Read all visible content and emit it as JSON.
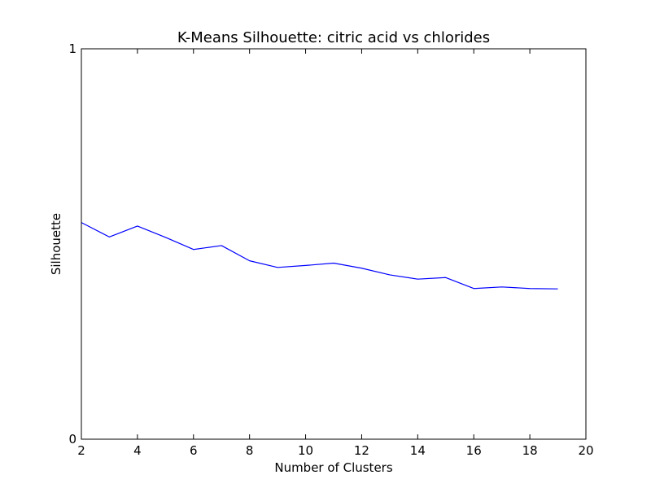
{
  "chart_data": {
    "type": "line",
    "title": "K-Means Silhouette: citric acid vs chlorides",
    "xlabel": "Number of Clusters",
    "ylabel": "Silhouette",
    "xlim": [
      2,
      20
    ],
    "ylim": [
      0,
      1
    ],
    "x_ticks": [
      2,
      4,
      6,
      8,
      10,
      12,
      14,
      16,
      18,
      20
    ],
    "y_ticks": [
      0,
      1
    ],
    "grid": false,
    "series": [
      {
        "color": "#0000ff",
        "x": [
          2,
          3,
          4,
          5,
          6,
          7,
          8,
          9,
          10,
          11,
          12,
          13,
          14,
          15,
          16,
          17,
          18,
          19
        ],
        "y": [
          0.555,
          0.518,
          0.546,
          0.517,
          0.486,
          0.496,
          0.457,
          0.44,
          0.445,
          0.451,
          0.438,
          0.421,
          0.41,
          0.414,
          0.386,
          0.39,
          0.386,
          0.385
        ]
      }
    ]
  }
}
